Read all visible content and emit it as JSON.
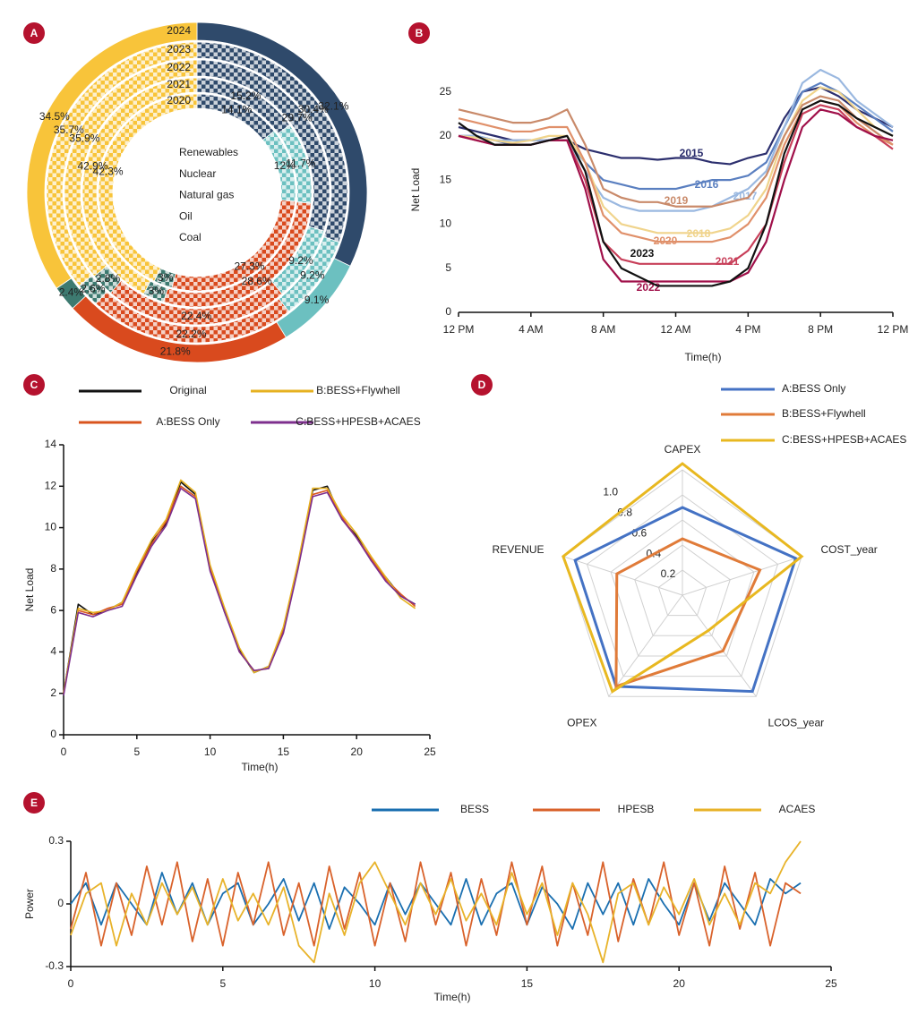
{
  "chart_data": [
    {
      "type": "donut",
      "label": "A",
      "categories": [
        "Renewables",
        "Nuclear",
        "Natural gas",
        "Oil",
        "Coal"
      ],
      "colors": [
        "#2f4a6b",
        "#6cc0c0",
        "#d94a1e",
        "#3d7a70",
        "#f8c43a"
      ],
      "series": [
        {
          "name": "2024",
          "values": [
            32.1,
            9.1,
            21.8,
            2.4,
            34.5
          ],
          "value_labels": [
            "32.1%",
            "9.1%",
            "21.8%",
            "2.4%",
            "34.5%"
          ]
        },
        {
          "name": "2023",
          "values": [
            30.4,
            9.2,
            22.2,
            2.6,
            35.7
          ],
          "value_labels": [
            "30.4%",
            "9.2%",
            "22.2%",
            "2.6%",
            "35.7%"
          ]
        },
        {
          "name": "2022",
          "values": [
            29.7,
            9.2,
            22.4,
            2.8,
            35.9
          ],
          "value_labels": [
            "29.7%",
            "9.2%",
            "22.4%",
            "2.8%",
            "35.9%"
          ]
        },
        {
          "name": "2021",
          "values": [
            15.2,
            11.7,
            28.6,
            3,
            42.9
          ],
          "value_labels": [
            "15.2%",
            "11.7%",
            "28.6%",
            "3%",
            "42.9%"
          ]
        },
        {
          "name": "2020",
          "values": [
            14.1,
            12,
            27.3,
            3,
            42.3
          ],
          "value_labels": [
            "14.1%",
            "12%",
            "27.3%",
            "3%",
            "42.3%"
          ]
        }
      ]
    },
    {
      "type": "line",
      "label": "B",
      "xlabel": "Time(h)",
      "ylabel": "Net Load",
      "x": [
        0,
        1,
        2,
        3,
        4,
        5,
        6,
        7,
        8,
        9,
        10,
        11,
        12,
        13,
        14,
        15,
        16,
        17,
        18,
        19,
        20,
        21,
        22,
        23,
        24
      ],
      "xlim": [
        0,
        24
      ],
      "ylim": [
        0,
        27.8
      ],
      "xticks": [
        {
          "value": 0,
          "label": "12 PM"
        },
        {
          "value": 4,
          "label": "4 AM"
        },
        {
          "value": 8,
          "label": "8 AM"
        },
        {
          "value": 12,
          "label": "12 AM"
        },
        {
          "value": 16,
          "label": "4 PM"
        },
        {
          "value": 20,
          "label": "8 PM"
        },
        {
          "value": 24,
          "label": "12 PM"
        }
      ],
      "yticks": [
        0,
        5,
        10,
        15,
        20,
        25
      ],
      "series": [
        {
          "name": "2015",
          "color": "#2c2f6e",
          "values": [
            21,
            20.5,
            20,
            19.5,
            19.5,
            19.5,
            19.5,
            18.5,
            18,
            17.5,
            17.5,
            17.3,
            17.5,
            17.5,
            17,
            16.8,
            17.5,
            18,
            22,
            25,
            25.5,
            24.5,
            23,
            22,
            21
          ]
        },
        {
          "name": "2016",
          "color": "#5a7fc0",
          "values": [
            20,
            20,
            19.5,
            19,
            19,
            19.5,
            19.5,
            17,
            15,
            14.5,
            14,
            14,
            14,
            14.5,
            15,
            15,
            15.5,
            17,
            21,
            25,
            26,
            25,
            23.5,
            22,
            20.5
          ]
        },
        {
          "name": "2017",
          "color": "#9ab8e0",
          "values": [
            20,
            20,
            19.5,
            19.5,
            19.5,
            19.5,
            19.5,
            16,
            13,
            12,
            11.5,
            11.5,
            11.5,
            11.5,
            12,
            13,
            14,
            16,
            21,
            26,
            27.5,
            26.5,
            24,
            22.5,
            21
          ]
        },
        {
          "name": "2018",
          "color": "#f0d48c",
          "values": [
            20,
            19.8,
            19.5,
            19.2,
            19.5,
            20,
            20,
            17,
            12,
            10,
            9.5,
            9,
            9,
            9,
            9,
            9.5,
            11,
            14,
            20,
            24,
            25.5,
            25,
            23,
            21,
            20
          ]
        },
        {
          "name": "2019",
          "color": "#c98a6a",
          "values": [
            23,
            22.5,
            22,
            21.5,
            21.5,
            22,
            23,
            19,
            14,
            13,
            12.5,
            12.5,
            12,
            12,
            12,
            12.5,
            13,
            15.5,
            20,
            23.5,
            24.5,
            24,
            22,
            20.5,
            19
          ]
        },
        {
          "name": "2020",
          "color": "#e0906a",
          "values": [
            22,
            21.5,
            21,
            20.5,
            20.5,
            21,
            21,
            17,
            11,
            9,
            8.5,
            8,
            8,
            8,
            8,
            8.5,
            10,
            13,
            19,
            23,
            24,
            23.5,
            21.5,
            20,
            19
          ]
        },
        {
          "name": "2021",
          "color": "#c8405a",
          "values": [
            20,
            19.5,
            19,
            19,
            19,
            19.5,
            19.5,
            15,
            8,
            6,
            5.5,
            5.5,
            5.5,
            5.5,
            5.5,
            5.5,
            7,
            10,
            17,
            22.5,
            23.5,
            23,
            21,
            20,
            18.5
          ]
        },
        {
          "name": "2022",
          "color": "#a0104a",
          "values": [
            20,
            19.5,
            19,
            19,
            19,
            19.5,
            19.5,
            14,
            6,
            3.5,
            3.5,
            3.5,
            3.5,
            3.5,
            3.5,
            3.5,
            4.5,
            8,
            15,
            21,
            23,
            22.5,
            21,
            20,
            19.5
          ]
        },
        {
          "name": "2023",
          "color": "#111111",
          "values": [
            21.5,
            20,
            19,
            19,
            19,
            19.5,
            20,
            16,
            8,
            5,
            4,
            3,
            3,
            3,
            3,
            3.5,
            5,
            10,
            18,
            23,
            24,
            23.5,
            22,
            21,
            20
          ]
        }
      ]
    },
    {
      "type": "line",
      "label": "C",
      "xlabel": "Time(h)",
      "ylabel": "Net Load",
      "x": [
        0,
        1,
        2,
        3,
        4,
        5,
        6,
        7,
        8,
        9,
        10,
        11,
        12,
        13,
        14,
        15,
        16,
        17,
        18,
        19,
        20,
        21,
        22,
        23,
        24
      ],
      "xlim": [
        0,
        25
      ],
      "ylim": [
        0,
        14
      ],
      "xticks": [
        0,
        5,
        10,
        15,
        20,
        25
      ],
      "yticks": [
        0,
        2,
        4,
        6,
        8,
        10,
        12,
        14
      ],
      "series": [
        {
          "name": "Original",
          "color": "#111111",
          "values": [
            2,
            6.3,
            5.8,
            6,
            6.4,
            7.8,
            9.3,
            10.2,
            12.2,
            11.6,
            8,
            5.9,
            4.1,
            3,
            3.3,
            5.1,
            8.2,
            11.8,
            12,
            10.4,
            9.6,
            8.4,
            7.6,
            6.7,
            6.3
          ]
        },
        {
          "name": "A:BESS Only",
          "color": "#d9541e",
          "values": [
            2,
            6,
            5.8,
            6.1,
            6.3,
            7.9,
            9.2,
            10.3,
            12,
            11.5,
            8.1,
            6,
            4,
            3.1,
            3.2,
            5,
            8.1,
            11.6,
            11.8,
            10.5,
            9.5,
            8.5,
            7.5,
            6.8,
            6.2
          ]
        },
        {
          "name": "B:BESS+Flywhell",
          "color": "#e6b120",
          "values": [
            2,
            6.1,
            5.9,
            6,
            6.4,
            8,
            9.4,
            10.4,
            12.3,
            11.7,
            8.2,
            6.1,
            4.2,
            3,
            3.3,
            5.2,
            8.3,
            11.9,
            11.9,
            10.6,
            9.7,
            8.6,
            7.6,
            6.6,
            6.1
          ]
        },
        {
          "name": "C:BESS+HPESB+ACAES",
          "color": "#7e2f8e",
          "values": [
            1.9,
            5.9,
            5.7,
            6,
            6.2,
            7.7,
            9.1,
            10.1,
            11.9,
            11.4,
            7.9,
            5.9,
            4,
            3.1,
            3.2,
            4.9,
            8,
            11.5,
            11.7,
            10.4,
            9.5,
            8.4,
            7.4,
            6.7,
            6.3
          ]
        }
      ]
    },
    {
      "type": "radar",
      "label": "D",
      "categories": [
        "CAPEX",
        "COST_year",
        "LCOS_year",
        "OPEX",
        "REVENUE"
      ],
      "rlim": [
        0,
        1
      ],
      "rticks": [
        0.2,
        0.4,
        0.6,
        0.8,
        {
          "value": 1,
          "label": "1.0"
        }
      ],
      "series": [
        {
          "name": "A:BESS Only",
          "color": "#4472c4",
          "values": [
            0.7,
            0.95,
            0.95,
            0.9,
            0.9
          ]
        },
        {
          "name": "B:BESS+Flywhell",
          "color": "#e07b39",
          "values": [
            0.45,
            0.65,
            0.55,
            0.9,
            0.55
          ]
        },
        {
          "name": "C:BESS+HPESB+ACAES",
          "color": "#e8b820",
          "values": [
            1.05,
            1,
            0.35,
            0.95,
            1
          ]
        }
      ]
    },
    {
      "type": "line",
      "label": "E",
      "xlabel": "Time(h)",
      "ylabel": "Power",
      "x": [
        0,
        0.5,
        1,
        1.5,
        2,
        2.5,
        3,
        3.5,
        4,
        4.5,
        5,
        5.5,
        6,
        6.5,
        7,
        7.5,
        8,
        8.5,
        9,
        9.5,
        10,
        10.5,
        11,
        11.5,
        12,
        12.5,
        13,
        13.5,
        14,
        14.5,
        15,
        15.5,
        16,
        16.5,
        17,
        17.5,
        18,
        18.5,
        19,
        19.5,
        20,
        20.5,
        21,
        21.5,
        22,
        22.5,
        23,
        23.5,
        24
      ],
      "xlim": [
        0,
        25
      ],
      "ylim": [
        -0.3,
        0.3
      ],
      "xticks": [
        0,
        5,
        10,
        15,
        20,
        25
      ],
      "yticks": [
        -0.3,
        0,
        0.3
      ],
      "series": [
        {
          "name": "BESS",
          "color": "#1a6fb0",
          "values": [
            0,
            0.1,
            -0.1,
            0.1,
            0,
            -0.1,
            0.15,
            -0.05,
            0.1,
            -0.1,
            0.05,
            0.1,
            -0.1,
            0,
            0.12,
            -0.08,
            0.1,
            -0.12,
            0.08,
            0,
            -0.1,
            0.1,
            -0.05,
            0.1,
            0,
            -0.1,
            0.12,
            -0.1,
            0.05,
            0.1,
            -0.1,
            0.08,
            0,
            -0.12,
            0.1,
            -0.05,
            0.1,
            -0.1,
            0.12,
            0,
            -0.1,
            0.1,
            -0.08,
            0.1,
            0,
            -0.1,
            0.12,
            0.05,
            0.1
          ]
        },
        {
          "name": "HPESB",
          "color": "#d9622b",
          "values": [
            -0.12,
            0.15,
            -0.2,
            0.1,
            -0.15,
            0.18,
            -0.1,
            0.2,
            -0.18,
            0.12,
            -0.2,
            0.15,
            -0.1,
            0.2,
            -0.15,
            0.1,
            -0.2,
            0.18,
            -0.12,
            0.15,
            -0.2,
            0.1,
            -0.18,
            0.2,
            -0.1,
            0.15,
            -0.2,
            0.12,
            -0.15,
            0.2,
            -0.1,
            0.18,
            -0.2,
            0.1,
            -0.15,
            0.2,
            -0.18,
            0.12,
            -0.1,
            0.2,
            -0.15,
            0.1,
            -0.2,
            0.18,
            -0.12,
            0.15,
            -0.2,
            0.1,
            0.05
          ]
        },
        {
          "name": "ACAES",
          "color": "#e8b32a",
          "values": [
            -0.15,
            0.05,
            0.1,
            -0.2,
            0.05,
            -0.1,
            0.1,
            -0.05,
            0.08,
            -0.1,
            0.12,
            -0.08,
            0.05,
            -0.1,
            0.08,
            -0.2,
            -0.28,
            0.05,
            -0.15,
            0.1,
            0.2,
            0.05,
            -0.1,
            0.1,
            -0.05,
            0.12,
            -0.08,
            0.05,
            -0.1,
            0.15,
            -0.05,
            0.1,
            -0.15,
            0.1,
            -0.05,
            -0.28,
            0.05,
            0.1,
            -0.1,
            0.08,
            -0.05,
            0.12,
            -0.1,
            0.05,
            -0.1,
            0.1,
            0.05,
            0.2,
            0.3
          ]
        }
      ]
    }
  ]
}
